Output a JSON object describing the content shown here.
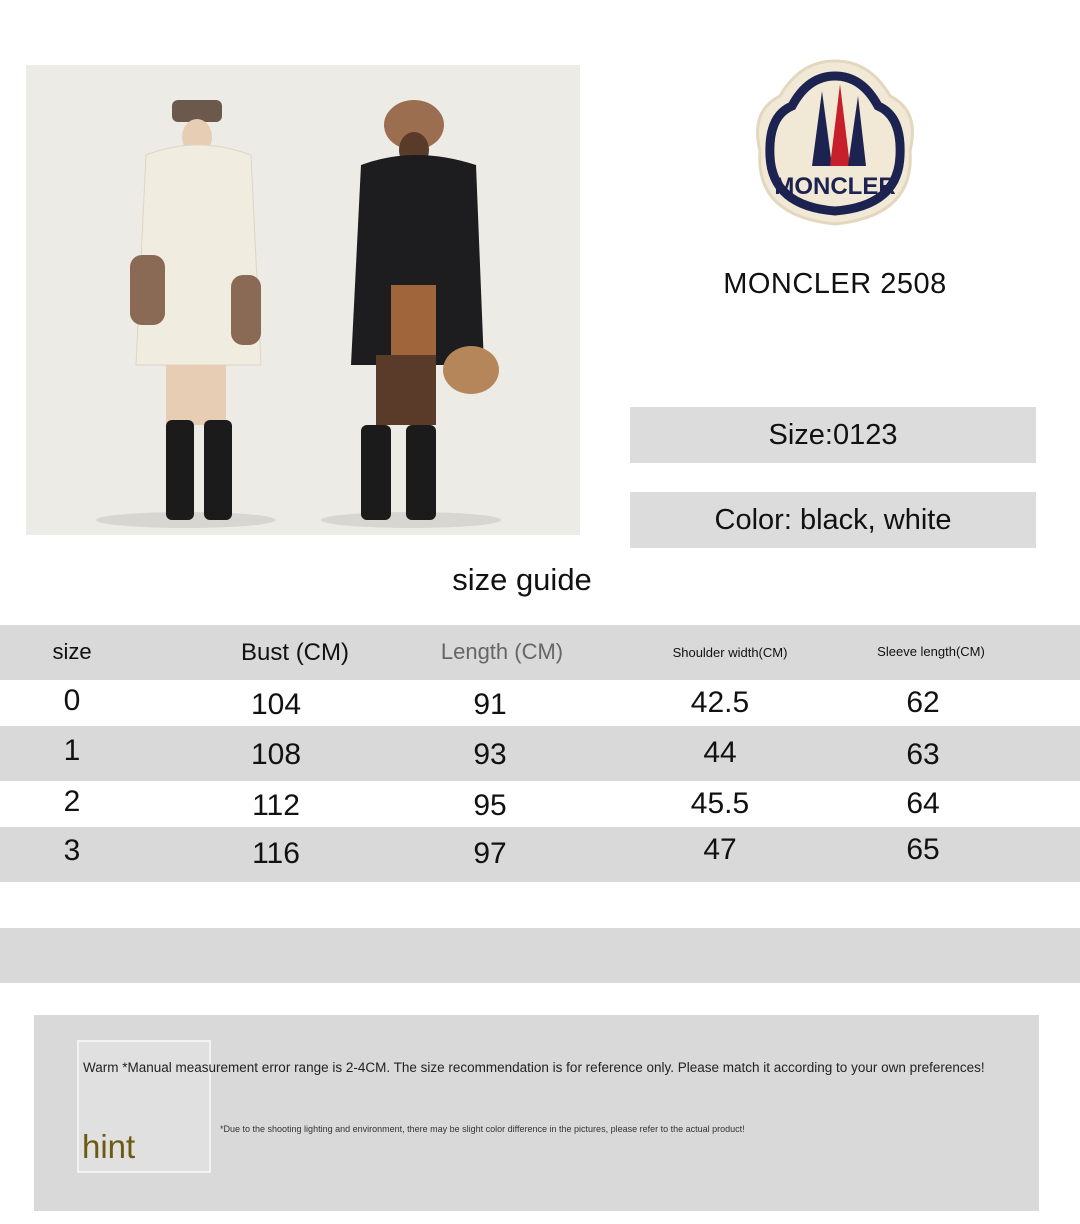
{
  "brand": {
    "logo_text": "MONCLER",
    "title": "MONCLER 2508"
  },
  "info": {
    "size": "Size:0123",
    "color": "Color: black, white"
  },
  "size_guide": {
    "title": "size guide",
    "headers": [
      "size",
      "Bust (CM)",
      "Length (CM)",
      "Shoulder width(CM)",
      "Sleeve length(CM)"
    ],
    "rows": [
      [
        "0",
        "104",
        "91",
        "42.5",
        "62"
      ],
      [
        "1",
        "108",
        "93",
        "44",
        "63"
      ],
      [
        "2",
        "112",
        "95",
        "45.5",
        "64"
      ],
      [
        "3",
        "116",
        "97",
        "47",
        "65"
      ]
    ]
  },
  "notes": {
    "hint_label": "hint",
    "line1": "Warm *Manual measurement error range is 2-4CM. The size recommendation is for reference only. Please match it according to your own preferences!",
    "line2": "*Due to the shooting lighting and environment, there may be slight color difference in the pictures, please refer to the actual product!"
  },
  "colors": {
    "row_gray": "#d9d9d9",
    "hint": "#6b5a10",
    "logo_navy": "#1d2350",
    "logo_red": "#c8202a"
  }
}
